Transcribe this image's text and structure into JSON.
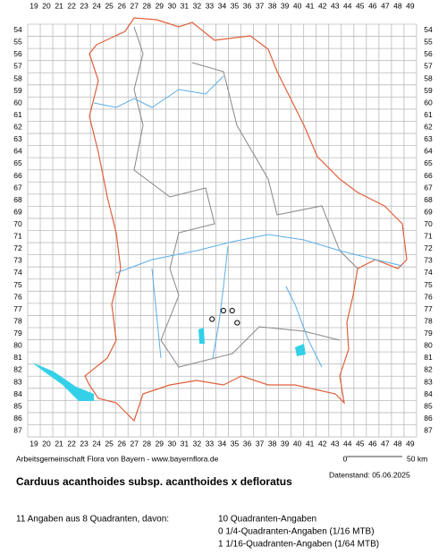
{
  "map": {
    "columns": [
      19,
      20,
      21,
      22,
      23,
      24,
      25,
      26,
      27,
      28,
      29,
      30,
      31,
      32,
      33,
      34,
      35,
      36,
      37,
      38,
      39,
      40,
      41,
      42,
      43,
      44,
      45,
      46,
      47,
      48,
      49
    ],
    "rows": [
      54,
      55,
      56,
      57,
      58,
      59,
      60,
      61,
      62,
      63,
      64,
      65,
      66,
      67,
      68,
      69,
      70,
      71,
      72,
      73,
      74,
      75,
      76,
      77,
      78,
      79,
      80,
      81,
      82,
      83,
      84,
      85,
      86,
      87
    ],
    "points": [
      {
        "x": 33.7,
        "y": 78.3
      },
      {
        "x": 34.6,
        "y": 77.6
      },
      {
        "x": 35.3,
        "y": 77.6
      },
      {
        "x": 35.7,
        "y": 78.6
      }
    ]
  },
  "scale": {
    "start": "0",
    "end": "50 km"
  },
  "credit": "Arbeitsgemeinschaft Flora von Bayern - www.bayernflora.de",
  "date": "Datenstand: 05.06.2025",
  "title": "Carduus acanthoides subsp. acanthoides x defloratus",
  "summary": "11 Angaben aus 8 Quadranten, davon:",
  "counts": [
    "10 Quadranten-Angaben",
    "0 1/4-Quadranten-Angaben (1/16 MTB)",
    "1 1/16-Quadranten-Angaben (1/64 MTB)"
  ]
}
